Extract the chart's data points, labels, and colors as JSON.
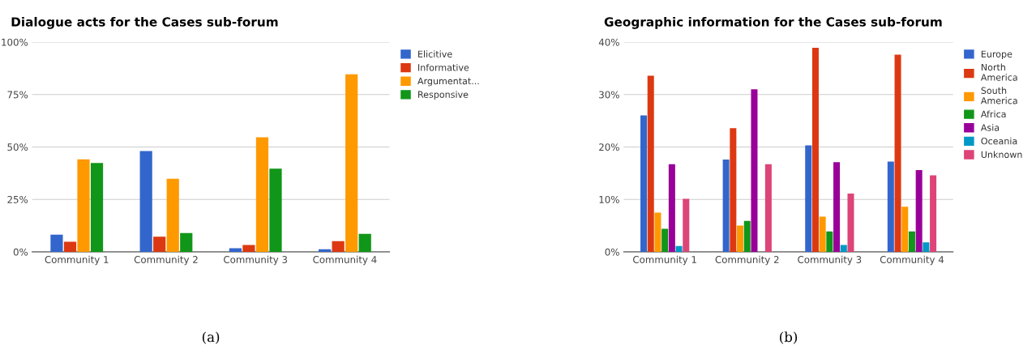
{
  "chart_data": [
    {
      "type": "bar",
      "title": "Dialogue acts for the Cases sub-forum",
      "categories": [
        "Community 1",
        "Community 2",
        "Community 3",
        "Community 4"
      ],
      "series": [
        {
          "name": "Elicitive",
          "color": "#3366cc",
          "values": [
            8.2,
            48.1,
            1.7,
            1.2
          ]
        },
        {
          "name": "Informative",
          "color": "#dc3912",
          "values": [
            4.8,
            7.2,
            3.3,
            5.1
          ]
        },
        {
          "name": "Argumentat...",
          "color": "#ff9900",
          "values": [
            44.1,
            34.8,
            54.6,
            84.6
          ]
        },
        {
          "name": "Responsive",
          "color": "#109618",
          "values": [
            42.4,
            9.0,
            39.7,
            8.6
          ]
        }
      ],
      "ylim": [
        0,
        100
      ],
      "yticks": [
        {
          "value": 0,
          "label": "0%"
        },
        {
          "value": 25,
          "label": "25%"
        },
        {
          "value": 50,
          "label": "50%"
        },
        {
          "value": 75,
          "label": "75%"
        },
        {
          "value": 100,
          "label": "100%"
        }
      ],
      "grid": "y",
      "legend": "right",
      "annotations": [
        "(a)"
      ]
    },
    {
      "type": "bar",
      "title": "Geographic information for the Cases sub-forum",
      "categories": [
        "Community 1",
        "Community 2",
        "Community 3",
        "Community 4"
      ],
      "series": [
        {
          "name": "Europe",
          "color": "#3366cc",
          "values": [
            26.0,
            17.6,
            20.3,
            17.2
          ]
        },
        {
          "name": "North\nAmerica",
          "color": "#dc3912",
          "values": [
            33.6,
            23.6,
            38.9,
            37.6
          ]
        },
        {
          "name": "South\nAmerica",
          "color": "#ff9900",
          "values": [
            7.5,
            5.0,
            6.7,
            8.6
          ]
        },
        {
          "name": "Africa",
          "color": "#109618",
          "values": [
            4.4,
            5.9,
            3.9,
            3.9
          ]
        },
        {
          "name": "Asia",
          "color": "#990099",
          "values": [
            16.7,
            31.0,
            17.1,
            15.6
          ]
        },
        {
          "name": "Oceania",
          "color": "#0099c6",
          "values": [
            1.1,
            0,
            1.3,
            1.8
          ]
        },
        {
          "name": "Unknown",
          "color": "#dd4477",
          "values": [
            10.1,
            16.7,
            11.1,
            14.6
          ]
        }
      ],
      "ylim": [
        0,
        40
      ],
      "yticks": [
        {
          "value": 0,
          "label": "0%"
        },
        {
          "value": 10,
          "label": "10%"
        },
        {
          "value": 20,
          "label": "20%"
        },
        {
          "value": 30,
          "label": "30%"
        },
        {
          "value": 40,
          "label": "40%"
        }
      ],
      "grid": "y",
      "legend": "right",
      "annotations": [
        "(b)"
      ]
    }
  ]
}
